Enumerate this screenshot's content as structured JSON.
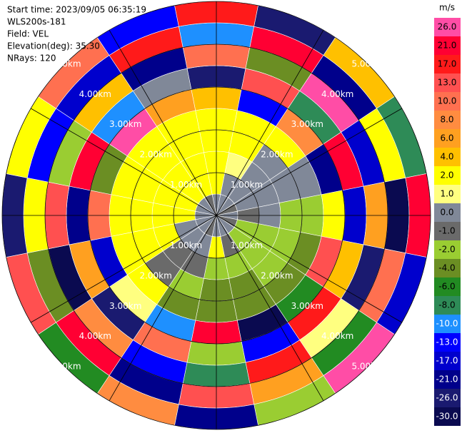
{
  "chart_data": {
    "type": "ppi",
    "header": [
      "Start time: 2023/09/05 06:35:19",
      "WLS200s-181",
      "Field: VEL",
      "Elevation(deg): 35.30",
      "NRays: 120"
    ],
    "rlim": [
      0,
      5
    ],
    "range_rings": [
      {
        "value": 1,
        "label": "1.00km"
      },
      {
        "value": 2,
        "label": "2.00km"
      },
      {
        "value": 3,
        "label": "3.00km"
      },
      {
        "value": 4,
        "label": "4.00km"
      },
      {
        "value": 5,
        "label": "5.00km"
      }
    ],
    "theta": [
      0,
      22.5,
      45,
      67.5,
      90,
      112.5,
      135,
      157.5,
      180,
      202.5,
      225,
      247.5,
      270,
      292.5,
      315,
      337.5
    ],
    "r": [
      0.25,
      0.75,
      1.25,
      1.75,
      2.25,
      2.75,
      3.25,
      3.75,
      4.25,
      4.75
    ],
    "values": [
      [
        0,
        0.5,
        0,
        -0.5,
        0,
        -0.5,
        0,
        0.5,
        0,
        -0.5,
        0,
        0.5,
        0,
        0.5,
        0,
        -0.5
      ],
      [
        2,
        0.5,
        0,
        0,
        -0.5,
        -1.5,
        -1.5,
        -0.5,
        2,
        0.5,
        0,
        0,
        2,
        2,
        2,
        2
      ],
      [
        2,
        1.5,
        0,
        0,
        0,
        -1.5,
        -1.5,
        -1.5,
        -1.5,
        -0.5,
        -0.5,
        2,
        2,
        2,
        2,
        2
      ],
      [
        2,
        2,
        0.5,
        0,
        -1.5,
        -1.5,
        -1.5,
        -3,
        -3,
        -1.5,
        -0.5,
        2,
        2,
        2,
        2,
        2
      ],
      [
        2,
        3,
        2,
        0,
        -1.5,
        -3,
        -3,
        -3,
        -3,
        -3,
        2,
        2,
        2,
        2,
        3,
        2
      ],
      [
        5,
        -12,
        9,
        -20,
        3,
        15,
        -5,
        -28,
        22,
        -9,
        1.5,
        -15,
        11,
        -3,
        27,
        7
      ],
      [
        -22,
        14,
        -7,
        25,
        -15,
        4,
        19,
        -11,
        -2,
        12,
        -26,
        7,
        -18,
        23,
        -9,
        0.5
      ],
      [
        11,
        -3,
        28,
        -16,
        6,
        -24,
        1.5,
        18,
        -7,
        -13,
        9,
        -29,
        15,
        -1.5,
        5,
        -19
      ],
      [
        -9,
        22,
        -18,
        3,
        -27,
        11,
        -5,
        7,
        16,
        -21,
        24,
        -4,
        2,
        -11,
        -14,
        19
      ],
      [
        17,
        -25,
        5,
        -8,
        21,
        -14,
        27,
        -2,
        -19,
        8,
        -6,
        13,
        -23,
        3,
        10,
        -12
      ]
    ],
    "colorbar": {
      "unit": "m/s",
      "ticks": [
        26,
        21,
        17,
        13,
        10,
        8,
        6,
        4,
        2,
        1,
        0,
        -1,
        -2,
        -4,
        -6,
        -8,
        -10,
        -13,
        -17,
        -21,
        -26,
        -30
      ],
      "tick_labels": [
        "26.0",
        "21.0",
        "17.0",
        "13.0",
        "10.0",
        "8.0",
        "6.0",
        "4.0",
        "2.0",
        "1.0",
        "0.0",
        "-1.0",
        "-2.0",
        "-4.0",
        "-6.0",
        "-8.0",
        "-10.0",
        "-13.0",
        "-17.0",
        "-21.0",
        "-26.0",
        "-30.0"
      ],
      "colors": [
        "#ff4da6",
        "#ff0033",
        "#ff1a1a",
        "#ff5050",
        "#ff7050",
        "#ff8c40",
        "#ffa020",
        "#ffc000",
        "#ffff00",
        "#ffff80",
        "#808898",
        "#6a6a6a",
        "#9acd32",
        "#6b8e23",
        "#228b22",
        "#2e8b57",
        "#1e90ff",
        "#0000ff",
        "#0000cd",
        "#00008b",
        "#1a1a70",
        "#0a0a50"
      ]
    }
  }
}
